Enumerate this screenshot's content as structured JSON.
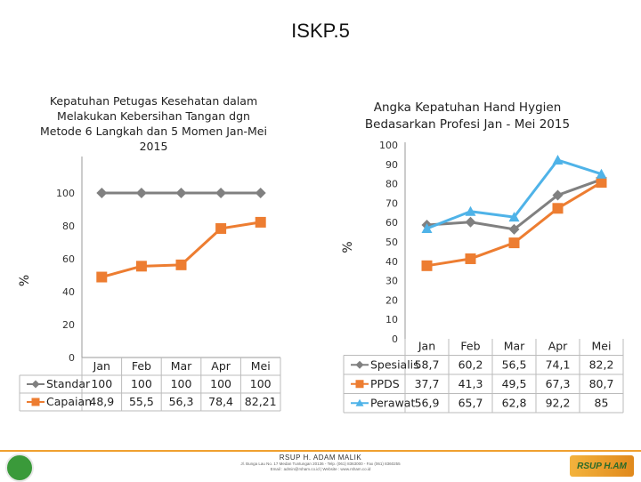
{
  "page": {
    "title": "ISKP.5"
  },
  "chart_data": [
    {
      "type": "line",
      "title": "Kepatuhan Petugas Kesehatan dalam Melakukan Kebersihan Tangan dgn Metode 6 Langkah dan 5 Momen Jan-Mei 2015",
      "ylabel": "%",
      "categories": [
        "Jan",
        "Feb",
        "Mar",
        "Apr",
        "Mei"
      ],
      "ylim": [
        0,
        100
      ],
      "yticks": [
        "0",
        "20",
        "40",
        "60",
        "80",
        "100"
      ],
      "series": [
        {
          "name": "Standar",
          "values": [
            100,
            100,
            100,
            100,
            100
          ],
          "labels": [
            "100",
            "100",
            "100",
            "100",
            "100"
          ],
          "color": "#808080",
          "marker": "diamond"
        },
        {
          "name": "Capaian",
          "values": [
            48.9,
            55.5,
            56.3,
            78.4,
            82.21
          ],
          "labels": [
            "48,9",
            "55,5",
            "56,3",
            "78,4",
            "82,21"
          ],
          "color": "#ED7D31",
          "marker": "square"
        }
      ]
    },
    {
      "type": "line",
      "title": "Angka Kepatuhan Hand Hygien Bedasarkan Profesi Jan - Mei 2015",
      "ylabel": "%",
      "categories": [
        "Jan",
        "Feb",
        "Mar",
        "Apr",
        "Mei"
      ],
      "ylim": [
        0,
        100
      ],
      "yticks": [
        "0",
        "10",
        "20",
        "30",
        "40",
        "50",
        "60",
        "70",
        "80",
        "90",
        "100"
      ],
      "series": [
        {
          "name": "Spesialis",
          "values": [
            58.7,
            60.2,
            56.5,
            74.1,
            82.2
          ],
          "labels": [
            "58,7",
            "60,2",
            "56,5",
            "74,1",
            "82,2"
          ],
          "color": "#808080",
          "marker": "diamond"
        },
        {
          "name": "PPDS",
          "values": [
            37.7,
            41.3,
            49.5,
            67.3,
            80.7
          ],
          "labels": [
            "37,7",
            "41,3",
            "49,5",
            "67,3",
            "80,7"
          ],
          "color": "#ED7D31",
          "marker": "square"
        },
        {
          "name": "Perawat",
          "values": [
            56.9,
            65.7,
            62.8,
            92.2,
            85
          ],
          "labels": [
            "56,9",
            "65,7",
            "62,8",
            "92,2",
            "85"
          ],
          "color": "#4FB3E8",
          "marker": "triangle"
        }
      ]
    }
  ],
  "footer": {
    "org": "RSUP H. ADAM MALIK",
    "address": "Jl. Bunga Lau No. 17 Medan Tuntungan 20136 - Telp. (061) 8363000 - Fax (061) 8360255",
    "contact": "Email : admin@rsham.co.id | Website : www.rsham.co.id",
    "logo_right": "RSUP H.AM"
  }
}
